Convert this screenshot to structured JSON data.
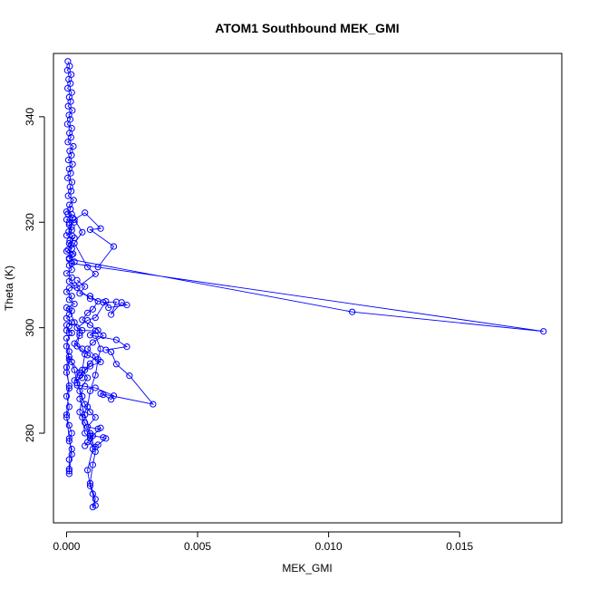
{
  "chart_data": {
    "type": "line",
    "title": "ATOM1 Southbound MEK_GMI",
    "xlabel": "MEK_GMI",
    "ylabel": "Theta (K)",
    "xlim": [
      -0.0005,
      0.0189
    ],
    "ylim": [
      263,
      352
    ],
    "xticks": [
      0.0,
      0.005,
      0.01,
      0.015
    ],
    "xtick_labels": [
      "0.000",
      "0.005",
      "0.010",
      "0.015"
    ],
    "yticks": [
      280,
      300,
      320,
      340
    ],
    "ytick_labels": [
      "280",
      "300",
      "320",
      "340"
    ],
    "grid": false,
    "legend": "none",
    "color": "#0000ff",
    "series": [
      {
        "points": [
          [
            5e-05,
            350.5
          ],
          [
            0.00012,
            349.6
          ],
          [
            3e-05,
            348.8
          ],
          [
            0.00018,
            348.0
          ],
          [
            8e-05,
            347.1
          ],
          [
            0.00015,
            346.3
          ],
          [
            4e-05,
            345.4
          ],
          [
            0.0002,
            344.6
          ],
          [
            0.0001,
            343.7
          ],
          [
            0.00016,
            342.9
          ],
          [
            6e-05,
            342.0
          ],
          [
            0.00022,
            341.2
          ],
          [
            9e-05,
            340.3
          ],
          [
            0.00014,
            339.5
          ],
          [
            3e-05,
            338.6
          ],
          [
            0.0002,
            337.8
          ],
          [
            0.00011,
            336.9
          ],
          [
            0.00017,
            336.1
          ],
          [
            5e-05,
            335.2
          ],
          [
            0.00026,
            334.4
          ],
          [
            0.00012,
            333.5
          ],
          [
            0.00019,
            332.7
          ],
          [
            7e-05,
            331.8
          ],
          [
            0.00023,
            331.0
          ],
          [
            0.0001,
            330.1
          ],
          [
            0.00016,
            329.3
          ],
          [
            4e-05,
            328.4
          ],
          [
            0.00021,
            327.6
          ],
          [
            0.00013,
            326.7
          ],
          [
            0.00018,
            325.9
          ],
          [
            6e-05,
            325.0
          ],
          [
            0.00027,
            324.2
          ],
          [
            0.00011,
            323.3
          ],
          [
            0.00015,
            322.5
          ],
          [
            5e-05,
            321.6
          ],
          [
            0.00024,
            320.8
          ],
          [
            0.0001,
            319.9
          ],
          [
            0.00019,
            319.1
          ],
          [
            8e-05,
            318.2
          ],
          [
            0.00022,
            317.4
          ],
          [
            0.00012,
            316.5
          ],
          [
            0.00017,
            315.7
          ],
          [
            6e-05,
            314.8
          ],
          [
            0.00025,
            314.0
          ],
          [
            0.0001,
            313.1
          ]
        ]
      },
      {
        "points": [
          [
            0.0001,
            313.0
          ],
          [
            0.0109,
            303.0
          ],
          [
            0.0182,
            299.3
          ],
          [
            0.0002,
            312.2
          ],
          [
            0.0012,
            311.5
          ],
          [
            0.0018,
            315.4
          ],
          [
            0.0009,
            318.6
          ],
          [
            0.0013,
            318.8
          ],
          [
            0.0007,
            321.8
          ],
          [
            0.0003,
            320.5
          ],
          [
            0.0006,
            318.1
          ],
          [
            0.0003,
            316.0
          ],
          [
            0.0008,
            311.5
          ],
          [
            0.0011,
            310.2
          ],
          [
            0.0004,
            307.6
          ],
          [
            0.0009,
            305.5
          ],
          [
            0.0014,
            304.8
          ],
          [
            0.0019,
            304.9
          ],
          [
            0.0017,
            302.5
          ],
          [
            0.0021,
            304.8
          ],
          [
            0.0023,
            304.3
          ],
          [
            0.0016,
            303.8
          ],
          [
            0.0015,
            305.0
          ],
          [
            0.0011,
            301.9
          ],
          [
            0.0008,
            301.4
          ],
          [
            0.0004,
            300.0
          ],
          [
            0.0006,
            299.5
          ],
          [
            0.0011,
            299.4
          ],
          [
            0.0009,
            298.6
          ],
          [
            0.0019,
            297.7
          ],
          [
            0.0023,
            296.4
          ],
          [
            0.0015,
            295.8
          ],
          [
            0.0017,
            295.4
          ],
          [
            0.0019,
            293.1
          ],
          [
            0.0024,
            290.9
          ],
          [
            0.0033,
            285.5
          ],
          [
            0.0013,
            287.5
          ],
          [
            0.0014,
            287.3
          ],
          [
            0.0017,
            286.4
          ],
          [
            0.0018,
            287.1
          ],
          [
            0.0011,
            288.6
          ],
          [
            0.0007,
            288.9
          ],
          [
            0.0004,
            289.1
          ],
          [
            0.0005,
            291.0
          ],
          [
            0.0009,
            292.7
          ],
          [
            0.0013,
            293.5
          ],
          [
            0.0008,
            294.8
          ],
          [
            0.0006,
            296.0
          ],
          [
            0.0003,
            297.0
          ],
          [
            0.0005,
            298.5
          ]
        ]
      },
      {
        "points": [
          [
            0.0001,
            303.5
          ],
          [
            0.0003,
            301.0
          ],
          [
            0.0005,
            299.0
          ],
          [
            0.0004,
            296.5
          ],
          [
            0.0007,
            295.0
          ],
          [
            0.0006,
            292.0
          ],
          [
            0.0008,
            290.5
          ],
          [
            0.0005,
            288.0
          ],
          [
            0.0007,
            285.5
          ],
          [
            0.0009,
            284.0
          ],
          [
            0.0011,
            283.0
          ],
          [
            0.0008,
            281.2
          ],
          [
            0.0012,
            280.8
          ],
          [
            0.0013,
            281.0
          ],
          [
            0.001,
            279.5
          ],
          [
            0.0014,
            279.2
          ],
          [
            0.0015,
            279.0
          ],
          [
            0.0012,
            277.8
          ],
          [
            0.0011,
            277.4
          ],
          [
            0.0008,
            278.3
          ],
          [
            0.0007,
            277.6
          ],
          [
            0.0009,
            279.0
          ],
          [
            0.0007,
            280.0
          ],
          [
            0.0006,
            283.0
          ],
          [
            0.0008,
            285.0
          ],
          [
            0.0009,
            288.0
          ],
          [
            0.0011,
            291.0
          ],
          [
            0.0012,
            294.0
          ],
          [
            0.0013,
            296.0
          ],
          [
            0.0011,
            298.5
          ]
        ]
      },
      {
        "points": [
          [
            0.0001,
            294.5
          ],
          [
            0.0003,
            292.0
          ],
          [
            0.0004,
            289.5
          ],
          [
            0.0006,
            287.0
          ],
          [
            0.0005,
            284.0
          ],
          [
            0.0007,
            282.0
          ],
          [
            0.0009,
            279.5
          ],
          [
            0.001,
            277.0
          ],
          [
            0.0008,
            273.0
          ],
          [
            0.0009,
            270.0
          ],
          [
            0.001,
            268.5
          ],
          [
            0.0011,
            266.3
          ],
          [
            0.001,
            266.0
          ],
          [
            0.0011,
            267.5
          ],
          [
            0.0009,
            270.5
          ],
          [
            0.001,
            274.0
          ],
          [
            0.0011,
            276.5
          ],
          [
            0.0009,
            280.0
          ],
          [
            0.0007,
            283.5
          ],
          [
            0.0005,
            286.5
          ]
        ]
      },
      {
        "points": [
          [
            0.0,
            300.5
          ],
          [
            0.0001,
            299.0
          ],
          [
            0.0,
            296.5
          ],
          [
            0.0001,
            294.0
          ],
          [
            0.0,
            291.5
          ],
          [
            0.0001,
            289.0
          ],
          [
            0.0,
            287.0
          ],
          [
            0.0001,
            285.0
          ],
          [
            0.0,
            283.0
          ],
          [
            0.0001,
            281.5
          ],
          [
            0.0002,
            280.0
          ],
          [
            0.0001,
            278.5
          ],
          [
            0.0002,
            277.0
          ],
          [
            0.0001,
            275.0
          ],
          [
            0.0001,
            273.2
          ],
          [
            0.0001,
            272.3
          ],
          [
            0.0001,
            272.8
          ],
          [
            0.0002,
            276.0
          ],
          [
            0.0001,
            279.0
          ],
          [
            0.0,
            283.5
          ],
          [
            0.0001,
            288.5
          ],
          [
            0.0,
            292.5
          ],
          [
            0.0001,
            295.5
          ],
          [
            0.0,
            298.0
          ]
        ]
      },
      {
        "points": [
          [
            0.0004,
            309.0
          ],
          [
            0.0007,
            307.8
          ],
          [
            0.0005,
            306.5
          ],
          [
            0.0009,
            306.0
          ],
          [
            0.0012,
            305.0
          ],
          [
            0.001,
            303.5
          ],
          [
            0.0008,
            302.8
          ],
          [
            0.0006,
            301.5
          ],
          [
            0.0009,
            300.5
          ],
          [
            0.0012,
            299.5
          ],
          [
            0.0014,
            298.5
          ],
          [
            0.001,
            297.2
          ],
          [
            0.0008,
            296.0
          ],
          [
            0.0011,
            294.5
          ],
          [
            0.0009,
            293.2
          ],
          [
            0.0007,
            292.0
          ],
          [
            0.0006,
            290.5
          ],
          [
            0.0003,
            290.0
          ],
          [
            0.0005,
            291.5
          ],
          [
            0.0002,
            293.5
          ]
        ]
      },
      {
        "points": [
          [
            0.0,
            322.0
          ],
          [
            0.0002,
            321.5
          ],
          [
            0.0,
            320.5
          ],
          [
            0.0003,
            320.0
          ],
          [
            0.0001,
            319.5
          ],
          [
            0.0002,
            318.5
          ],
          [
            0.0,
            317.5
          ],
          [
            0.0003,
            317.0
          ],
          [
            0.0001,
            316.0
          ],
          [
            0.0002,
            315.0
          ],
          [
            0.0,
            314.5
          ],
          [
            0.0002,
            313.8
          ],
          [
            0.0001,
            313.2
          ],
          [
            0.0003,
            312.5
          ],
          [
            0.0001,
            311.8
          ],
          [
            0.0002,
            311.0
          ],
          [
            0.0,
            310.3
          ],
          [
            0.0002,
            309.5
          ],
          [
            0.0001,
            308.8
          ],
          [
            0.0003,
            308.0
          ],
          [
            0.0001,
            307.5
          ],
          [
            0.0,
            306.8
          ],
          [
            0.0002,
            306.0
          ],
          [
            0.0001,
            305.3
          ],
          [
            0.0003,
            304.5
          ],
          [
            0.0,
            303.8
          ],
          [
            0.0002,
            303.2
          ],
          [
            0.0001,
            302.5
          ],
          [
            0.0,
            301.8
          ],
          [
            0.0002,
            301.0
          ],
          [
            0.0001,
            300.3
          ],
          [
            0.0,
            299.5
          ],
          [
            0.0002,
            299.0
          ]
        ]
      }
    ]
  }
}
